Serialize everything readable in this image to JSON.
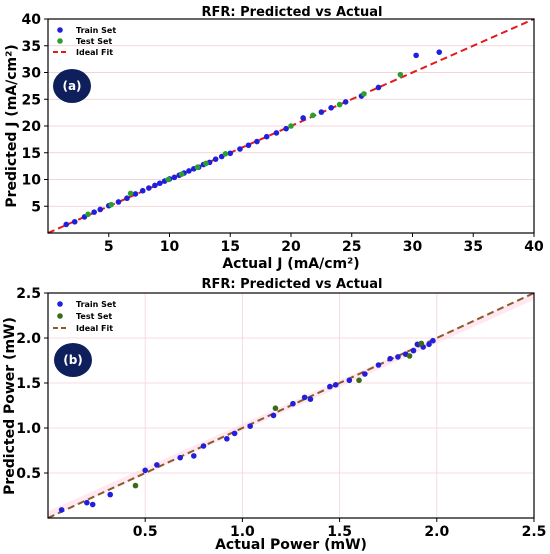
{
  "chart_data": [
    {
      "type": "scatter",
      "title": "RFR: Predicted vs Actual",
      "xlabel": "Actual J (mA/cm²)",
      "ylabel": "Predicted J (mA/cm²)",
      "xlim": [
        0,
        40
      ],
      "ylim": [
        0,
        40
      ],
      "xticks": [
        "5",
        "10",
        "15",
        "20",
        "25",
        "30",
        "35",
        "40"
      ],
      "yticks": [
        "5",
        "10",
        "15",
        "20",
        "25",
        "30",
        "35",
        "40"
      ],
      "grid": true,
      "legend_position": "top-left",
      "panel_label": "(a)",
      "series": [
        {
          "name": "Train Set",
          "color": "#1f1fdc",
          "points": [
            [
              1.5,
              1.6
            ],
            [
              2.2,
              2.1
            ],
            [
              3.0,
              3.0
            ],
            [
              3.8,
              3.9
            ],
            [
              4.3,
              4.4
            ],
            [
              5.0,
              5.1
            ],
            [
              5.8,
              5.8
            ],
            [
              6.5,
              6.5
            ],
            [
              7.2,
              7.3
            ],
            [
              7.8,
              7.9
            ],
            [
              8.3,
              8.4
            ],
            [
              8.8,
              8.9
            ],
            [
              9.2,
              9.3
            ],
            [
              9.6,
              9.7
            ],
            [
              10.0,
              10.1
            ],
            [
              10.4,
              10.4
            ],
            [
              10.8,
              10.8
            ],
            [
              11.2,
              11.2
            ],
            [
              11.6,
              11.6
            ],
            [
              12.0,
              12.0
            ],
            [
              12.4,
              12.3
            ],
            [
              12.8,
              12.8
            ],
            [
              13.3,
              13.2
            ],
            [
              13.8,
              13.8
            ],
            [
              14.3,
              14.3
            ],
            [
              15.0,
              14.9
            ],
            [
              15.8,
              15.7
            ],
            [
              16.5,
              16.4
            ],
            [
              17.2,
              17.1
            ],
            [
              18.0,
              18.0
            ],
            [
              18.8,
              18.7
            ],
            [
              19.6,
              19.5
            ],
            [
              21.0,
              21.5
            ],
            [
              22.5,
              22.6
            ],
            [
              23.3,
              23.4
            ],
            [
              24.5,
              24.5
            ],
            [
              25.8,
              25.6
            ],
            [
              27.2,
              27.2
            ],
            [
              30.3,
              33.2
            ],
            [
              32.2,
              33.8
            ]
          ]
        },
        {
          "name": "Test Set",
          "color": "#2ca02c",
          "points": [
            [
              3.3,
              3.5
            ],
            [
              5.2,
              5.3
            ],
            [
              6.8,
              7.4
            ],
            [
              9.9,
              10.0
            ],
            [
              11.0,
              11.0
            ],
            [
              12.3,
              12.3
            ],
            [
              13.0,
              13.0
            ],
            [
              14.6,
              14.8
            ],
            [
              20.0,
              20.0
            ],
            [
              21.8,
              22.0
            ],
            [
              24.0,
              24.0
            ],
            [
              26.0,
              26.0
            ],
            [
              29.0,
              29.6
            ]
          ]
        }
      ],
      "reference_line": {
        "name": "Ideal Fit",
        "from": [
          0,
          0
        ],
        "to": [
          40,
          40
        ],
        "color": "#e31a1c"
      }
    },
    {
      "type": "scatter",
      "title": "RFR: Predicted vs Actual",
      "xlabel": "Actual Power (mW)",
      "ylabel": "Predicted Power (mW)",
      "xlim": [
        0,
        2.5
      ],
      "ylim": [
        0,
        2.5
      ],
      "xticks": [
        "0.5",
        "1.0",
        "1.5",
        "2.0",
        "2.5"
      ],
      "yticks": [
        "0.5",
        "1.0",
        "1.5",
        "2.0",
        "2.5"
      ],
      "grid": true,
      "legend_position": "top-left",
      "panel_label": "(b)",
      "series": [
        {
          "name": "Train Set",
          "color": "#1f1fdc",
          "points": [
            [
              0.07,
              0.09
            ],
            [
              0.2,
              0.17
            ],
            [
              0.23,
              0.15
            ],
            [
              0.32,
              0.26
            ],
            [
              0.5,
              0.53
            ],
            [
              0.56,
              0.59
            ],
            [
              0.68,
              0.67
            ],
            [
              0.75,
              0.69
            ],
            [
              0.8,
              0.8
            ],
            [
              0.92,
              0.88
            ],
            [
              0.96,
              0.94
            ],
            [
              1.04,
              1.02
            ],
            [
              1.16,
              1.14
            ],
            [
              1.26,
              1.27
            ],
            [
              1.32,
              1.34
            ],
            [
              1.35,
              1.32
            ],
            [
              1.45,
              1.46
            ],
            [
              1.48,
              1.48
            ],
            [
              1.55,
              1.53
            ],
            [
              1.63,
              1.6
            ],
            [
              1.7,
              1.7
            ],
            [
              1.76,
              1.77
            ],
            [
              1.8,
              1.79
            ],
            [
              1.84,
              1.82
            ],
            [
              1.88,
              1.86
            ],
            [
              1.9,
              1.93
            ],
            [
              1.93,
              1.9
            ],
            [
              1.96,
              1.93
            ],
            [
              1.98,
              1.97
            ]
          ]
        },
        {
          "name": "Test Set",
          "color": "#3a6b1a",
          "points": [
            [
              0.45,
              0.36
            ],
            [
              1.17,
              1.22
            ],
            [
              1.6,
              1.53
            ],
            [
              1.86,
              1.8
            ],
            [
              1.92,
              1.94
            ]
          ]
        }
      ],
      "reference_line": {
        "name": "Ideal Fit",
        "from": [
          0,
          0
        ],
        "to": [
          2.5,
          2.5
        ],
        "color": "#8b5a2b"
      }
    }
  ]
}
